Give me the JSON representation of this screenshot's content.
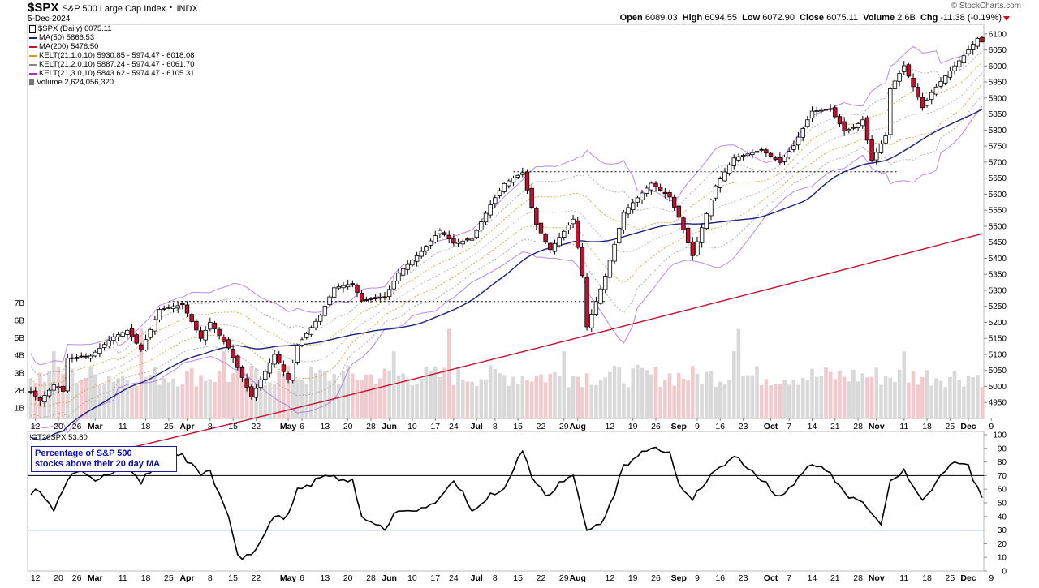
{
  "header": {
    "symbol": "$SPX",
    "name": "S&P 500 Large Cap Index",
    "exchange": "INDX",
    "date": "5-Dec-2024",
    "quote": {
      "open_label": "Open",
      "open": "6089.03",
      "high_label": "High",
      "high": "6094.55",
      "low_label": "Low",
      "low": "6072.90",
      "close_label": "Close",
      "close": "6075.11",
      "volume_label": "Volume",
      "volume": "2.6B",
      "chg_label": "Chg",
      "chg": "-11.38 (-0.19%)"
    },
    "watermark": "© StockCharts.com"
  },
  "legend": [
    {
      "text": "$SPX (Daily) 6075.11",
      "color": "#000000",
      "icon": "candle-icon"
    },
    {
      "text": "MA(50) 5866.53",
      "color": "#1a237e"
    },
    {
      "text": "MA(200) 5476.50",
      "color": "#c8102e"
    },
    {
      "text": "KELT(21,1.0,10) 5930.85 - 5974.47 - 6018.08",
      "color": "#c79a2b"
    },
    {
      "text": "KELT(21,2.0,10) 5887.24 - 5974.47 - 6061.70",
      "color": "#888888"
    },
    {
      "text": "KELT(21,3.0,10) 5843.62 - 5974.47 - 6105.31",
      "color": "#9b30d9"
    },
    {
      "text": "Volume 2,624,056,320",
      "color": "#666666",
      "icon": "volume-icon"
    }
  ],
  "lower_panel": {
    "label": "!GT20SPX 53.80",
    "note_line1": "Percentage of S&P 500",
    "note_line2": "stocks above their 20 day MA"
  },
  "colors": {
    "up": "#ffffff",
    "down": "#c8102e",
    "ma50": "#1a237e",
    "ma200": "#c8102e",
    "kelt1": "#c79a2b",
    "kelt2": "#999999",
    "kelt3": "#a56de0",
    "indicator": "#000000",
    "threshold": "#1a237e"
  },
  "chart_data": [
    {
      "type": "candlestick",
      "title": "$SPX S&P 500 Large Cap Index",
      "ylim": [
        4900,
        6130
      ],
      "y_ticks": [
        4950,
        5000,
        5050,
        5100,
        5150,
        5200,
        5250,
        5300,
        5350,
        5400,
        5450,
        5500,
        5550,
        5600,
        5650,
        5700,
        5750,
        5800,
        5850,
        5900,
        5950,
        6000,
        6050,
        6100
      ],
      "volume_ticks": [
        "1B",
        "2B",
        "3B",
        "4B",
        "5B",
        "6B",
        "7B"
      ],
      "x_ticks": [
        "12",
        "20",
        "26",
        "Mar",
        "11",
        "18",
        "25",
        "Apr",
        "8",
        "15",
        "22",
        "May",
        "6",
        "13",
        "20",
        "28",
        "Jun",
        "10",
        "17",
        "24",
        "Jul",
        "8",
        "15",
        "22",
        "29",
        "Aug",
        "12",
        "19",
        "26",
        "Sep",
        "9",
        "16",
        "23",
        "Oct",
        "7",
        "14",
        "21",
        "28",
        "Nov",
        "11",
        "18",
        "25",
        "Dec",
        "9"
      ],
      "dates": [
        "2024-02-09",
        "2024-02-12",
        "2024-02-13",
        "2024-02-14",
        "2024-02-15",
        "2024-02-16",
        "2024-02-20",
        "2024-02-21",
        "2024-02-22",
        "2024-02-23",
        "2024-02-26",
        "2024-02-27",
        "2024-02-28",
        "2024-02-29",
        "2024-03-01",
        "2024-03-04",
        "2024-03-05",
        "2024-03-06",
        "2024-03-07",
        "2024-03-08",
        "2024-03-11",
        "2024-03-12",
        "2024-03-13",
        "2024-03-14",
        "2024-03-15",
        "2024-03-18",
        "2024-03-19",
        "2024-03-20",
        "2024-03-21",
        "2024-03-22",
        "2024-03-25",
        "2024-03-26",
        "2024-03-27",
        "2024-03-28",
        "2024-04-01",
        "2024-04-02",
        "2024-04-03",
        "2024-04-04",
        "2024-04-05",
        "2024-04-08",
        "2024-04-09",
        "2024-04-10",
        "2024-04-11",
        "2024-04-12",
        "2024-04-15",
        "2024-04-16",
        "2024-04-17",
        "2024-04-18",
        "2024-04-19",
        "2024-04-22",
        "2024-04-23",
        "2024-04-24",
        "2024-04-25",
        "2024-04-26",
        "2024-04-29",
        "2024-04-30",
        "2024-05-01",
        "2024-05-02",
        "2024-05-03",
        "2024-05-06",
        "2024-05-07",
        "2024-05-08",
        "2024-05-09",
        "2024-05-10",
        "2024-05-13",
        "2024-05-14",
        "2024-05-15",
        "2024-05-16",
        "2024-05-17",
        "2024-05-20",
        "2024-05-21",
        "2024-05-22",
        "2024-05-23",
        "2024-05-24",
        "2024-05-28",
        "2024-05-29",
        "2024-05-30",
        "2024-05-31",
        "2024-06-03",
        "2024-06-04",
        "2024-06-05",
        "2024-06-06",
        "2024-06-07",
        "2024-06-10",
        "2024-06-11",
        "2024-06-12",
        "2024-06-13",
        "2024-06-14",
        "2024-06-17",
        "2024-06-18",
        "2024-06-20",
        "2024-06-21",
        "2024-06-24",
        "2024-06-25",
        "2024-06-26",
        "2024-06-27",
        "2024-06-28",
        "2024-07-01",
        "2024-07-02",
        "2024-07-03",
        "2024-07-05",
        "2024-07-08",
        "2024-07-09",
        "2024-07-10",
        "2024-07-11",
        "2024-07-12",
        "2024-07-15",
        "2024-07-16",
        "2024-07-17",
        "2024-07-18",
        "2024-07-19",
        "2024-07-22",
        "2024-07-23",
        "2024-07-24",
        "2024-07-25",
        "2024-07-26",
        "2024-07-29",
        "2024-07-30",
        "2024-07-31",
        "2024-08-01",
        "2024-08-02",
        "2024-08-05",
        "2024-08-06",
        "2024-08-07",
        "2024-08-08",
        "2024-08-09",
        "2024-08-12",
        "2024-08-13",
        "2024-08-14",
        "2024-08-15",
        "2024-08-16",
        "2024-08-19",
        "2024-08-20",
        "2024-08-21",
        "2024-08-22",
        "2024-08-23",
        "2024-08-26",
        "2024-08-27",
        "2024-08-28",
        "2024-08-29",
        "2024-08-30",
        "2024-09-03",
        "2024-09-04",
        "2024-09-05",
        "2024-09-06",
        "2024-09-09",
        "2024-09-10",
        "2024-09-11",
        "2024-09-12",
        "2024-09-13",
        "2024-09-16",
        "2024-09-17",
        "2024-09-18",
        "2024-09-19",
        "2024-09-20",
        "2024-09-23",
        "2024-09-24",
        "2024-09-25",
        "2024-09-26",
        "2024-09-27",
        "2024-09-30",
        "2024-10-01",
        "2024-10-02",
        "2024-10-03",
        "2024-10-04",
        "2024-10-07",
        "2024-10-08",
        "2024-10-09",
        "2024-10-10",
        "2024-10-11",
        "2024-10-14",
        "2024-10-15",
        "2024-10-16",
        "2024-10-17",
        "2024-10-18",
        "2024-10-21",
        "2024-10-22",
        "2024-10-23",
        "2024-10-24",
        "2024-10-25",
        "2024-10-28",
        "2024-10-29",
        "2024-10-30",
        "2024-10-31",
        "2024-11-01",
        "2024-11-04",
        "2024-11-05",
        "2024-11-06",
        "2024-11-07",
        "2024-11-08",
        "2024-11-11",
        "2024-11-12",
        "2024-11-13",
        "2024-11-14",
        "2024-11-15",
        "2024-11-18",
        "2024-11-19",
        "2024-11-20",
        "2024-11-21",
        "2024-11-22",
        "2024-11-25",
        "2024-11-26",
        "2024-11-27",
        "2024-11-29",
        "2024-12-02",
        "2024-12-03",
        "2024-12-04",
        "2024-12-05"
      ],
      "close_anchors": [
        [
          "2024-02-09",
          4985
        ],
        [
          "2024-02-13",
          4955
        ],
        [
          "2024-02-16",
          5005
        ],
        [
          "2024-02-21",
          4985
        ],
        [
          "2024-02-22",
          5088
        ],
        [
          "2024-02-29",
          5095
        ],
        [
          "2024-03-07",
          5155
        ],
        [
          "2024-03-12",
          5175
        ],
        [
          "2024-03-15",
          5115
        ],
        [
          "2024-03-21",
          5240
        ],
        [
          "2024-03-28",
          5255
        ],
        [
          "2024-04-04",
          5150
        ],
        [
          "2024-04-08",
          5200
        ],
        [
          "2024-04-12",
          5120
        ],
        [
          "2024-04-19",
          4967
        ],
        [
          "2024-04-26",
          5100
        ],
        [
          "2024-05-01",
          5020
        ],
        [
          "2024-05-03",
          5127
        ],
        [
          "2024-05-10",
          5222
        ],
        [
          "2024-05-15",
          5308
        ],
        [
          "2024-05-21",
          5321
        ],
        [
          "2024-05-23",
          5267
        ],
        [
          "2024-05-31",
          5277
        ],
        [
          "2024-06-05",
          5354
        ],
        [
          "2024-06-12",
          5421
        ],
        [
          "2024-06-18",
          5487
        ],
        [
          "2024-06-24",
          5447
        ],
        [
          "2024-06-28",
          5460
        ],
        [
          "2024-07-05",
          5567
        ],
        [
          "2024-07-10",
          5633
        ],
        [
          "2024-07-16",
          5667
        ],
        [
          "2024-07-19",
          5505
        ],
        [
          "2024-07-24",
          5427
        ],
        [
          "2024-07-31",
          5522
        ],
        [
          "2024-08-02",
          5346
        ],
        [
          "2024-08-05",
          5186
        ],
        [
          "2024-08-09",
          5344
        ],
        [
          "2024-08-15",
          5543
        ],
        [
          "2024-08-23",
          5634
        ],
        [
          "2024-08-29",
          5591
        ],
        [
          "2024-09-03",
          5528
        ],
        [
          "2024-09-06",
          5408
        ],
        [
          "2024-09-13",
          5626
        ],
        [
          "2024-09-19",
          5713
        ],
        [
          "2024-09-27",
          5738
        ],
        [
          "2024-10-03",
          5699
        ],
        [
          "2024-10-08",
          5751
        ],
        [
          "2024-10-14",
          5859
        ],
        [
          "2024-10-18",
          5864
        ],
        [
          "2024-10-23",
          5797
        ],
        [
          "2024-10-25",
          5808
        ],
        [
          "2024-10-29",
          5832
        ],
        [
          "2024-10-31",
          5705
        ],
        [
          "2024-11-05",
          5782
        ],
        [
          "2024-11-06",
          5929
        ],
        [
          "2024-11-11",
          6001
        ],
        [
          "2024-11-15",
          5870
        ],
        [
          "2024-11-19",
          5917
        ],
        [
          "2024-11-22",
          5969
        ],
        [
          "2024-11-29",
          6032
        ],
        [
          "2024-12-04",
          6086
        ],
        [
          "2024-12-05",
          6075.11
        ]
      ],
      "ohlc_last": {
        "open": 6089.03,
        "high": 6094.55,
        "low": 6072.9,
        "close": 6075.11,
        "volume": 2624056320
      },
      "ma50_last": 5866.53,
      "ma200_last": 5476.5,
      "kelt_last": [
        [
          5930.85,
          5974.47,
          6018.08
        ],
        [
          5887.24,
          5974.47,
          6061.7
        ],
        [
          5843.62,
          5974.47,
          6105.31
        ]
      ],
      "resistance_lines": [
        {
          "level": 5265,
          "from": "2024-03-25",
          "to": "2024-08-09"
        },
        {
          "level": 5670,
          "from": "2024-07-12",
          "to": "2024-11-08"
        }
      ]
    },
    {
      "type": "line",
      "title": "!GT20SPX",
      "last": 53.8,
      "ylim": [
        0,
        100
      ],
      "y_ticks": [
        0,
        10,
        20,
        30,
        40,
        50,
        60,
        70,
        80,
        90,
        100
      ],
      "thresholds": [
        30,
        70
      ],
      "anchors": [
        [
          "2024-02-09",
          56
        ],
        [
          "2024-02-13",
          58
        ],
        [
          "2024-02-16",
          44
        ],
        [
          "2024-02-21",
          62
        ],
        [
          "2024-02-26",
          76
        ],
        [
          "2024-03-01",
          66
        ],
        [
          "2024-03-07",
          72
        ],
        [
          "2024-03-12",
          80
        ],
        [
          "2024-03-15",
          64
        ],
        [
          "2024-03-21",
          80
        ],
        [
          "2024-03-28",
          86
        ],
        [
          "2024-04-04",
          72
        ],
        [
          "2024-04-08",
          74
        ],
        [
          "2024-04-12",
          40
        ],
        [
          "2024-04-16",
          12
        ],
        [
          "2024-04-19",
          12
        ],
        [
          "2024-04-23",
          22
        ],
        [
          "2024-04-26",
          40
        ],
        [
          "2024-05-01",
          42
        ],
        [
          "2024-05-03",
          58
        ],
        [
          "2024-05-09",
          68
        ],
        [
          "2024-05-15",
          70
        ],
        [
          "2024-05-21",
          64
        ],
        [
          "2024-05-23",
          40
        ],
        [
          "2024-05-31",
          30
        ],
        [
          "2024-06-05",
          44
        ],
        [
          "2024-06-12",
          44
        ],
        [
          "2024-06-18",
          54
        ],
        [
          "2024-06-24",
          66
        ],
        [
          "2024-06-28",
          44
        ],
        [
          "2024-07-05",
          54
        ],
        [
          "2024-07-10",
          60
        ],
        [
          "2024-07-16",
          88
        ],
        [
          "2024-07-19",
          64
        ],
        [
          "2024-07-24",
          56
        ],
        [
          "2024-07-31",
          72
        ],
        [
          "2024-08-05",
          28
        ],
        [
          "2024-08-09",
          40
        ],
        [
          "2024-08-15",
          78
        ],
        [
          "2024-08-23",
          90
        ],
        [
          "2024-08-29",
          86
        ],
        [
          "2024-09-03",
          64
        ],
        [
          "2024-09-06",
          52
        ],
        [
          "2024-09-13",
          74
        ],
        [
          "2024-09-19",
          84
        ],
        [
          "2024-09-27",
          66
        ],
        [
          "2024-10-03",
          52
        ],
        [
          "2024-10-08",
          66
        ],
        [
          "2024-10-14",
          78
        ],
        [
          "2024-10-18",
          72
        ],
        [
          "2024-10-23",
          58
        ],
        [
          "2024-10-29",
          50
        ],
        [
          "2024-11-04",
          34
        ],
        [
          "2024-11-06",
          66
        ],
        [
          "2024-11-11",
          72
        ],
        [
          "2024-11-15",
          52
        ],
        [
          "2024-11-19",
          60
        ],
        [
          "2024-11-22",
          76
        ],
        [
          "2024-11-26",
          80
        ],
        [
          "2024-12-02",
          78
        ],
        [
          "2024-12-05",
          53.8
        ]
      ]
    }
  ]
}
